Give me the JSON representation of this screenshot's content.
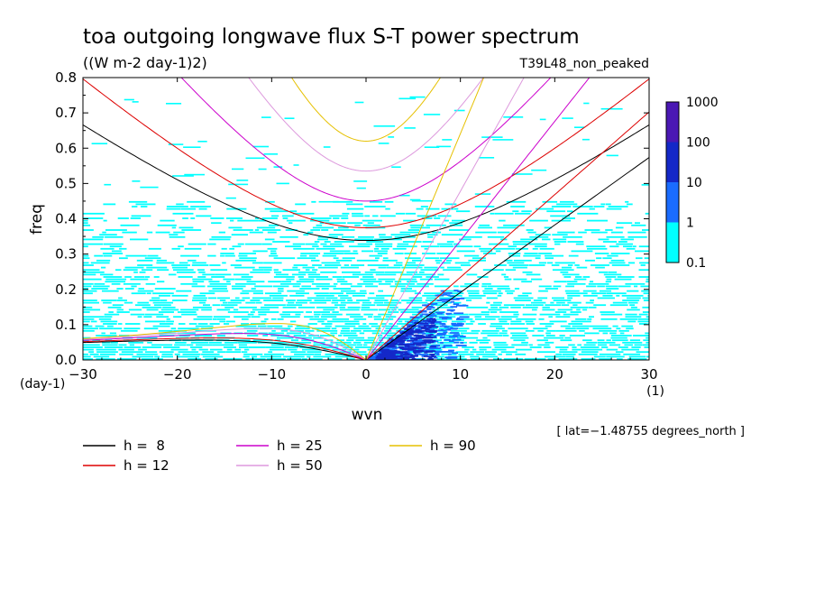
{
  "chart_data": {
    "type": "heatmap",
    "title": "toa outgoing longwave flux S-T power spectrum",
    "subtitle": "((W m-2 day-1)2)",
    "run_label": "T39L48_non_peaked",
    "xlabel": "wvn",
    "ylabel": "freq",
    "x_unit": "(1)",
    "y_unit": "(day-1)",
    "xlim": [
      -30,
      30
    ],
    "ylim": [
      0,
      0.8
    ],
    "x_ticks": [
      -30,
      -20,
      -10,
      0,
      10,
      20,
      30
    ],
    "y_ticks": [
      0.0,
      0.1,
      0.2,
      0.3,
      0.4,
      0.5,
      0.6,
      0.7,
      0.8
    ],
    "x_tick_labels": [
      "−30",
      "−20",
      "−10",
      "0",
      "10",
      "20",
      "30"
    ],
    "y_tick_labels": [
      "0.0",
      "0.1",
      "0.2",
      "0.3",
      "0.4",
      "0.5",
      "0.6",
      "0.7",
      "0.8"
    ],
    "footnote": "[ lat=−1.48755 degrees_north ]",
    "colorbar": {
      "levels": [
        "0.1",
        "1",
        "10",
        "100",
        "1000"
      ],
      "colors": [
        "#00ffff",
        "#1a6cff",
        "#1428c8",
        "#4a18b4"
      ]
    },
    "spectrum_regions": [
      {
        "name": "background",
        "level_index": 0,
        "x": [
          -30,
          30
        ],
        "y": [
          0.0,
          0.45
        ]
      },
      {
        "name": "kelvin_ridge",
        "level_index": 1,
        "x": [
          0,
          10
        ],
        "y": [
          0.0,
          0.2
        ]
      },
      {
        "name": "kelvin_core",
        "level_index": 2,
        "x": [
          1,
          7
        ],
        "y": [
          0.0,
          0.12
        ]
      }
    ],
    "dispersion_curves": [
      {
        "label": "h =  8",
        "h": 8,
        "color": "#000000"
      },
      {
        "label": "h = 12",
        "h": 12,
        "color": "#dd0000"
      },
      {
        "label": "h = 25",
        "h": 25,
        "color": "#cc00cc"
      },
      {
        "label": "h = 50",
        "h": 50,
        "color": "#dd99dd"
      },
      {
        "label": "h = 90",
        "h": 90,
        "color": "#e6c000"
      }
    ]
  }
}
